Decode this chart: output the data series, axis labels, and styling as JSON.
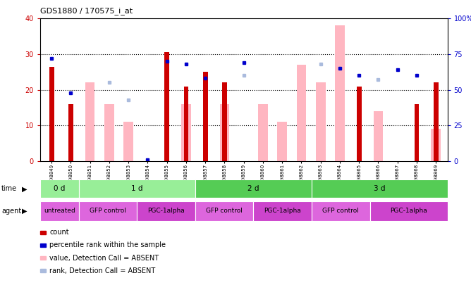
{
  "title": "GDS1880 / 170575_i_at",
  "samples": [
    "GSM98849",
    "GSM98850",
    "GSM98851",
    "GSM98852",
    "GSM98853",
    "GSM98854",
    "GSM98855",
    "GSM98856",
    "GSM98857",
    "GSM98858",
    "GSM98859",
    "GSM98860",
    "GSM98861",
    "GSM98862",
    "GSM98863",
    "GSM98864",
    "GSM98865",
    "GSM98866",
    "GSM98867",
    "GSM98868",
    "GSM98869"
  ],
  "count_values": [
    26.5,
    16.0,
    null,
    null,
    null,
    null,
    30.5,
    21.0,
    25.0,
    22.0,
    null,
    null,
    null,
    null,
    null,
    null,
    21.0,
    null,
    null,
    16.0,
    22.0
  ],
  "rank_pct": [
    72,
    48,
    null,
    null,
    null,
    1,
    70,
    68,
    58,
    null,
    69,
    null,
    null,
    null,
    null,
    65,
    60,
    null,
    64,
    60,
    null
  ],
  "absent_value_values": [
    null,
    null,
    22.0,
    16.0,
    11.0,
    null,
    null,
    16.0,
    null,
    16.0,
    null,
    16.0,
    11.0,
    27.0,
    22.0,
    38.0,
    null,
    14.0,
    null,
    null,
    9.0
  ],
  "absent_rank_pct": [
    null,
    null,
    null,
    55,
    43,
    null,
    null,
    null,
    null,
    null,
    60,
    null,
    null,
    null,
    68,
    65,
    null,
    57,
    null,
    null,
    null
  ],
  "ylim_left": [
    0,
    40
  ],
  "ylim_right": [
    0,
    100
  ],
  "yticks_left": [
    0,
    10,
    20,
    30,
    40
  ],
  "yticks_right_vals": [
    0,
    25,
    50,
    75,
    100
  ],
  "yticks_right_labels": [
    "0",
    "25",
    "50",
    "75",
    "100%"
  ],
  "time_groups": [
    {
      "label": "0 d",
      "start": 0,
      "end": 2,
      "color": "#98ee98"
    },
    {
      "label": "1 d",
      "start": 2,
      "end": 8,
      "color": "#98ee98"
    },
    {
      "label": "2 d",
      "start": 8,
      "end": 14,
      "color": "#55cc55"
    },
    {
      "label": "3 d",
      "start": 14,
      "end": 21,
      "color": "#55cc55"
    }
  ],
  "agent_groups": [
    {
      "label": "untreated",
      "start": 0,
      "end": 2,
      "color": "#dd66dd"
    },
    {
      "label": "GFP control",
      "start": 2,
      "end": 5,
      "color": "#dd66dd"
    },
    {
      "label": "PGC-1alpha",
      "start": 5,
      "end": 8,
      "color": "#cc44cc"
    },
    {
      "label": "GFP control",
      "start": 8,
      "end": 11,
      "color": "#dd66dd"
    },
    {
      "label": "PGC-1alpha",
      "start": 11,
      "end": 14,
      "color": "#cc44cc"
    },
    {
      "label": "GFP control",
      "start": 14,
      "end": 17,
      "color": "#dd66dd"
    },
    {
      "label": "PGC-1alpha",
      "start": 17,
      "end": 21,
      "color": "#cc44cc"
    }
  ],
  "count_color": "#cc0000",
  "rank_color": "#0000cc",
  "absent_value_color": "#ffb6c1",
  "absent_rank_color": "#aabbdd",
  "bg_color": "#ffffff",
  "grid_color": "#000000"
}
